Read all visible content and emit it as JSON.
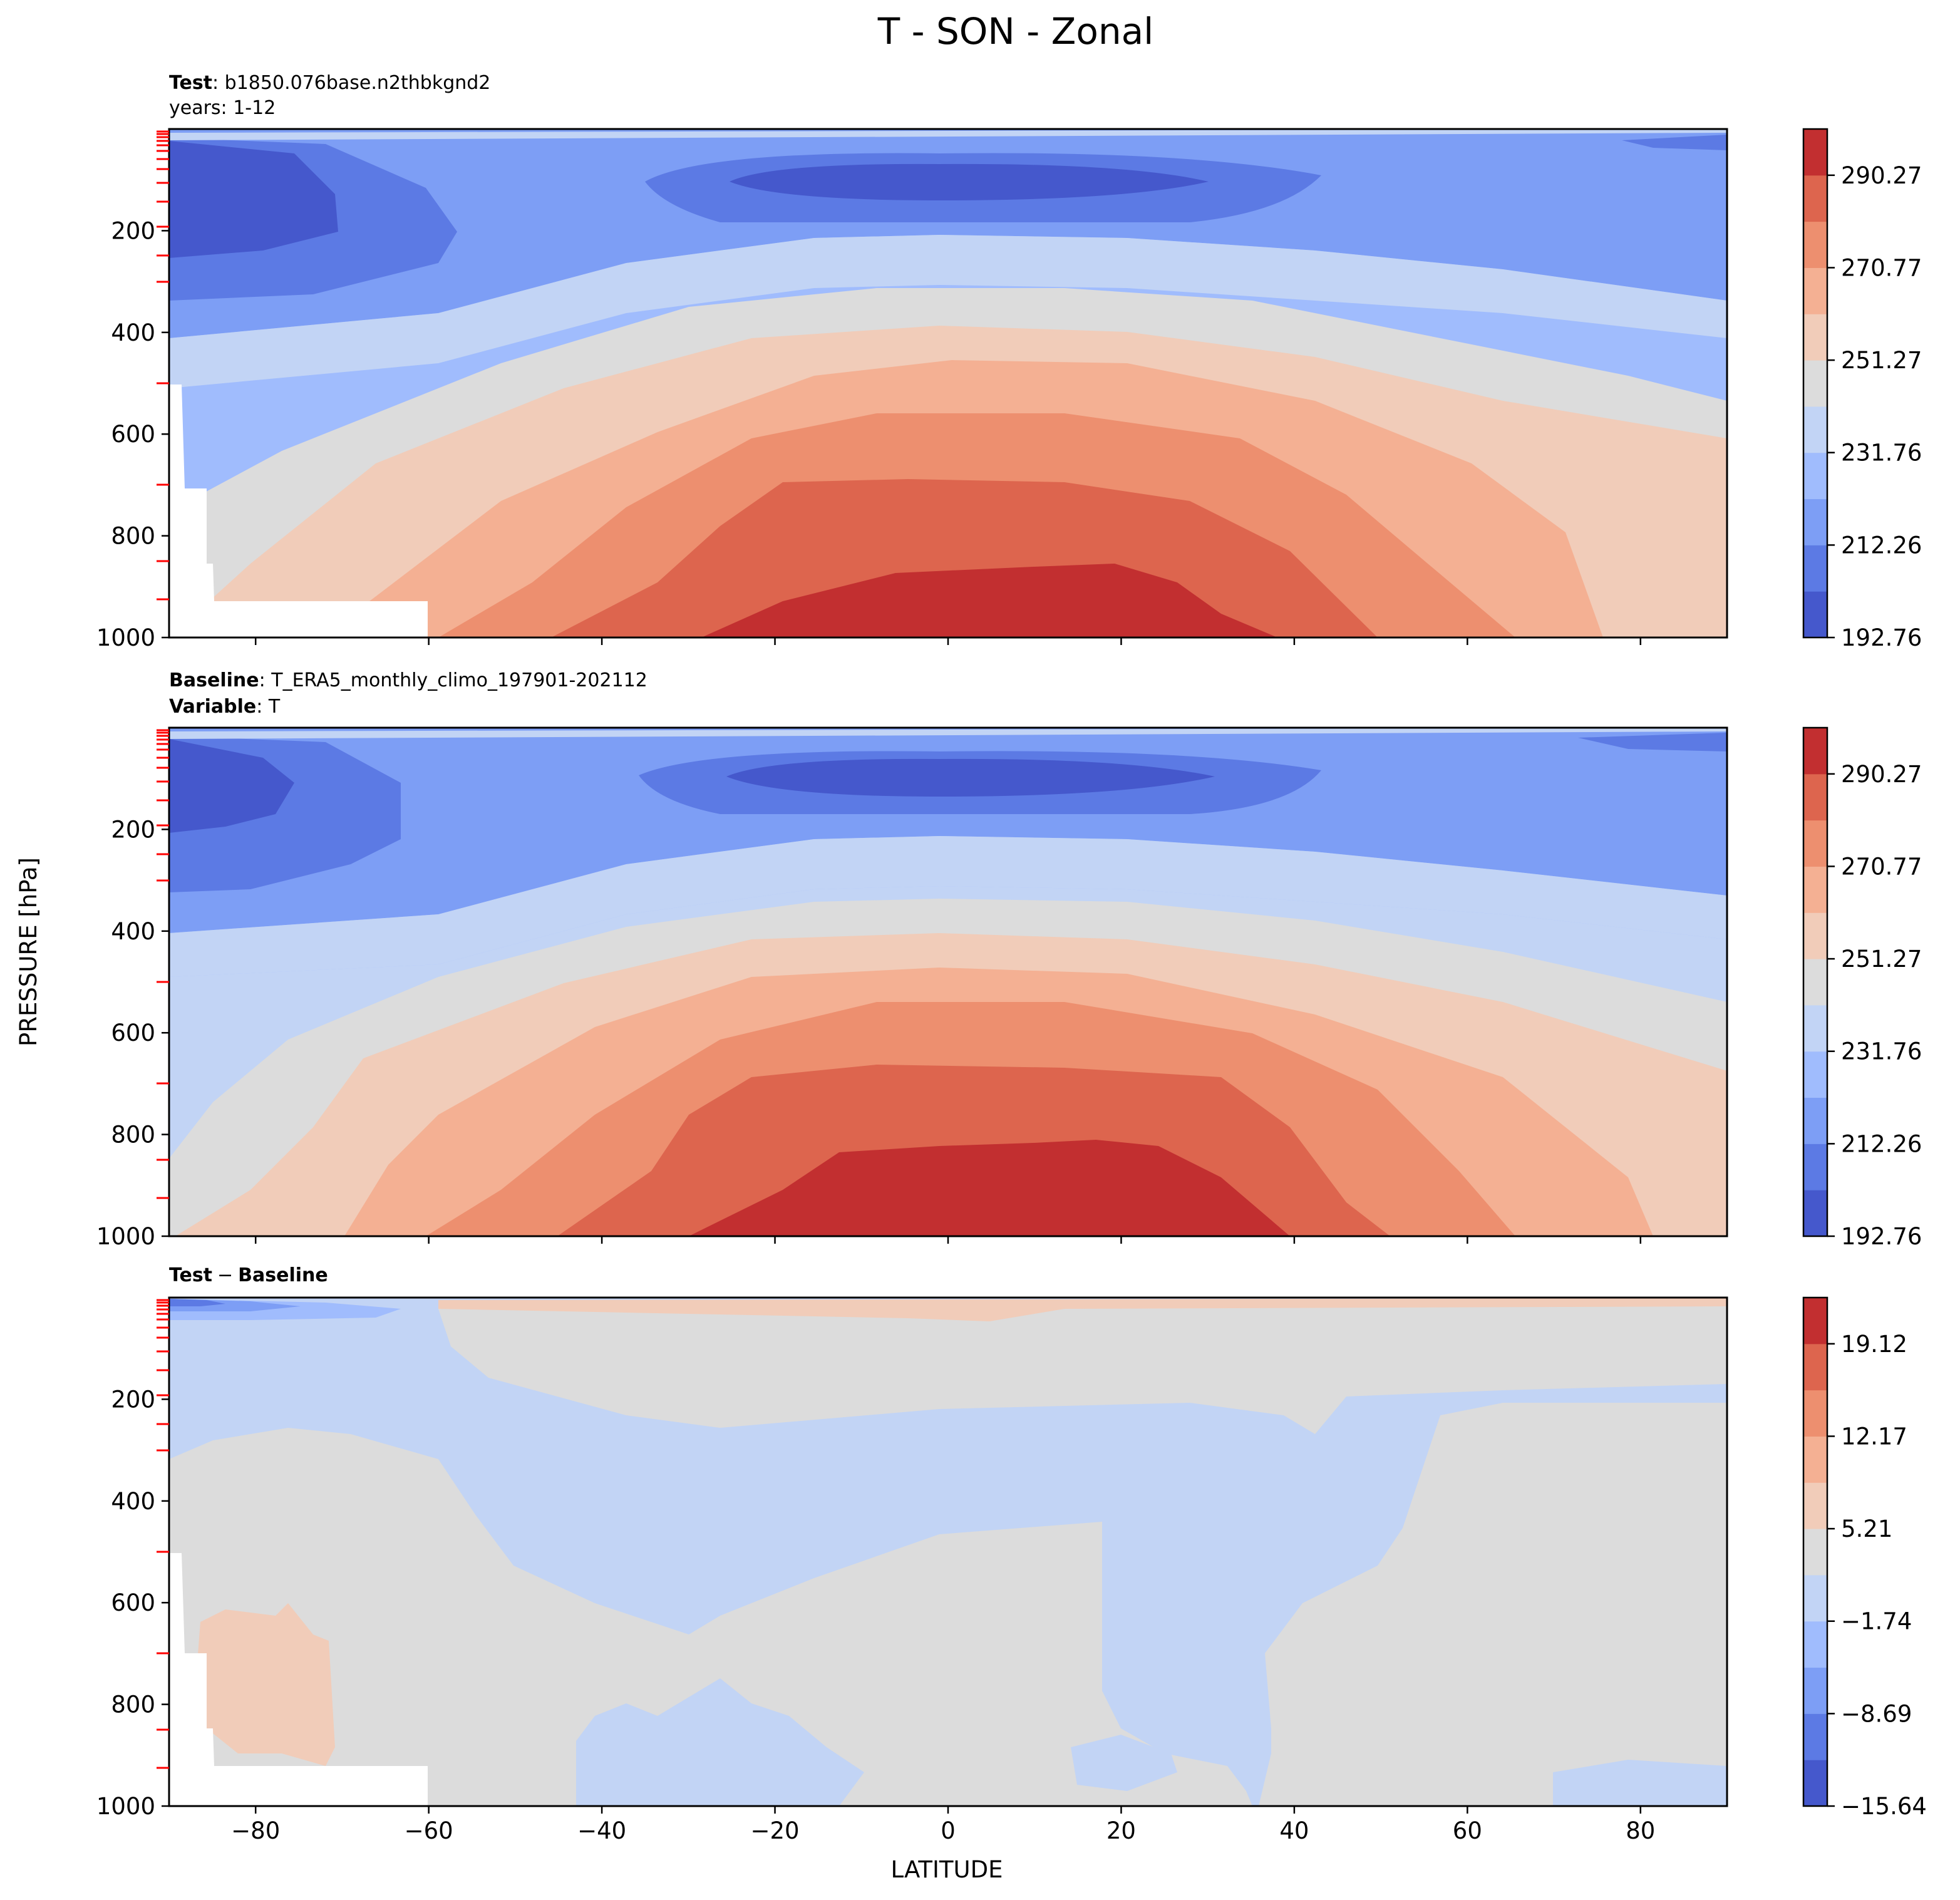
{
  "figure": {
    "title": "T - SON - Zonal",
    "shared_ylabel": "PRESSURE [hPa]",
    "shared_xlabel": "LATITUDE"
  },
  "colors": {
    "scale": [
      "#4558cc",
      "#5c7ae4",
      "#7d9ef5",
      "#a0bcfd",
      "#c2d4f5",
      "#dcdcdc",
      "#f1ccb9",
      "#f4b093",
      "#ed8f6f",
      "#dd654e",
      "#c22f30"
    ],
    "axes_edge": "#000000",
    "level_ticks": "#ff0000",
    "missing": "#ffffff"
  },
  "panels": [
    {
      "id": "test",
      "header_line1_bold": "Test",
      "header_line1_text": ": b1850.076base.n2thbkgnd2",
      "header_line2": "years: 1-12",
      "colorbar_ticks": [
        "290.27",
        "270.77",
        "251.27",
        "231.76",
        "212.26",
        "192.76"
      ]
    },
    {
      "id": "baseline",
      "header_line1_bold": "Baseline",
      "header_line1_text": ": T_ERA5_monthly_climo_197901-202112",
      "header_line2_bold": "Variable",
      "header_line2_text": ": T",
      "colorbar_ticks": [
        "290.27",
        "270.77",
        "251.27",
        "231.76",
        "212.26",
        "192.76"
      ]
    },
    {
      "id": "difference",
      "header_test": "Test",
      "header_minus": "−",
      "header_base": "Baseline",
      "colorbar_ticks": [
        "19.12",
        "12.17",
        "5.21",
        "−1.74",
        "−8.69",
        "−15.64"
      ]
    }
  ],
  "chart_data": [
    {
      "type": "heatmap",
      "panel": "test",
      "xlim": [
        -90,
        90
      ],
      "ylim": [
        1000,
        0
      ],
      "x_ticks": [
        -80,
        -60,
        -40,
        -20,
        0,
        20,
        40,
        60,
        80
      ],
      "y_ticks": [
        200,
        400,
        600,
        800,
        1000
      ],
      "colorbar": {
        "levels": [
          192.76,
          202.51,
          212.26,
          222.01,
          231.76,
          241.51,
          251.27,
          261.02,
          270.77,
          280.52,
          290.27,
          300.02
        ],
        "tick_labels": [
          "290.27",
          "270.77",
          "251.27",
          "231.76",
          "212.26",
          "192.76"
        ]
      },
      "contour_isotherms": [
        {
          "level": 212.26,
          "latitude": [
            -60,
            -30,
            0,
            30,
            60,
            90
          ],
          "pressure": [
            330,
            270,
            170,
            170,
            250,
            350
          ]
        },
        {
          "level": 231.76,
          "latitude": [
            -90,
            -60,
            -30,
            0,
            30,
            60,
            90
          ],
          "pressure": [
            420,
            390,
            300,
            230,
            240,
            300,
            330
          ]
        },
        {
          "level": 241.51,
          "latitude": [
            -85,
            -70,
            -50,
            -30,
            0,
            30,
            60,
            90
          ],
          "pressure": [
            710,
            600,
            500,
            360,
            320,
            350,
            420,
            490
          ]
        },
        {
          "level": 251.27,
          "latitude": [
            -80,
            -60,
            -40,
            -20,
            0,
            30,
            60,
            90
          ],
          "pressure": [
            850,
            680,
            560,
            430,
            385,
            430,
            520,
            690
          ]
        },
        {
          "level": 261.02,
          "latitude": [
            -70,
            -50,
            -30,
            -15,
            0,
            30,
            60,
            80
          ],
          "pressure": [
            960,
            800,
            640,
            520,
            475,
            520,
            680,
            1000
          ]
        },
        {
          "level": 270.77,
          "latitude": [
            -50,
            -30,
            -15,
            0,
            30,
            50,
            68
          ],
          "pressure": [
            960,
            820,
            660,
            580,
            640,
            850,
            1000
          ]
        },
        {
          "level": 280.52,
          "latitude": [
            -35,
            -20,
            -10,
            0,
            30,
            45,
            58
          ],
          "pressure": [
            1000,
            840,
            730,
            700,
            730,
            850,
            1000
          ]
        },
        {
          "level": 290.27,
          "latitude": [
            -20,
            -10,
            0,
            12,
            25,
            40
          ],
          "pressure": [
            990,
            890,
            870,
            850,
            900,
            1000
          ]
        }
      ]
    },
    {
      "type": "heatmap",
      "panel": "baseline",
      "xlim": [
        -90,
        90
      ],
      "ylim": [
        1000,
        0
      ],
      "x_ticks": [
        -80,
        -60,
        -40,
        -20,
        0,
        20,
        40,
        60,
        80
      ],
      "y_ticks": [
        200,
        400,
        600,
        800,
        1000
      ],
      "colorbar": {
        "levels": [
          192.76,
          202.51,
          212.26,
          222.01,
          231.76,
          241.51,
          251.27,
          261.02,
          270.77,
          280.52,
          290.27,
          300.02
        ],
        "tick_labels": [
          "290.27",
          "270.77",
          "251.27",
          "231.76",
          "212.26",
          "192.76"
        ]
      },
      "contour_isotherms": [
        {
          "level": 212.26,
          "latitude": [
            -60,
            -30,
            0,
            30,
            60,
            90
          ],
          "pressure": [
            300,
            260,
            170,
            170,
            250,
            350
          ]
        },
        {
          "level": 231.76,
          "latitude": [
            -90,
            -60,
            -30,
            0,
            30,
            60,
            90
          ],
          "pressure": [
            400,
            380,
            300,
            230,
            240,
            300,
            330
          ]
        },
        {
          "level": 241.51,
          "latitude": [
            -90,
            -70,
            -50,
            -30,
            0,
            30,
            60,
            90
          ],
          "pressure": [
            820,
            600,
            500,
            360,
            320,
            350,
            420,
            540
          ]
        },
        {
          "level": 251.27,
          "latitude": [
            -85,
            -65,
            -40,
            -20,
            0,
            30,
            60,
            90
          ],
          "pressure": [
            1000,
            780,
            560,
            430,
            370,
            430,
            520,
            680
          ]
        },
        {
          "level": 261.02,
          "latitude": [
            -70,
            -50,
            -30,
            -15,
            0,
            30,
            60,
            82
          ],
          "pressure": [
            1000,
            800,
            640,
            520,
            470,
            520,
            680,
            1000
          ]
        },
        {
          "level": 270.77,
          "latitude": [
            -60,
            -40,
            -20,
            0,
            30,
            50,
            66
          ],
          "pressure": [
            1000,
            820,
            660,
            570,
            640,
            850,
            1000
          ]
        },
        {
          "level": 280.52,
          "latitude": [
            -45,
            -30,
            -15,
            0,
            30,
            45,
            52
          ],
          "pressure": [
            1000,
            850,
            700,
            670,
            700,
            850,
            1000
          ]
        },
        {
          "level": 290.27,
          "latitude": [
            -30,
            -15,
            0,
            15,
            30,
            40
          ],
          "pressure": [
            990,
            850,
            830,
            820,
            880,
            1000
          ]
        }
      ]
    },
    {
      "type": "heatmap",
      "panel": "difference",
      "xlim": [
        -90,
        90
      ],
      "ylim": [
        1000,
        0
      ],
      "x_ticks": [
        -80,
        -60,
        -40,
        -20,
        0,
        20,
        40,
        60,
        80
      ],
      "y_ticks": [
        200,
        400,
        600,
        800,
        1000
      ],
      "xlabel": "LATITUDE",
      "colorbar": {
        "levels": [
          -19.12,
          -15.64,
          -12.17,
          -8.69,
          -5.21,
          -1.74,
          1.74,
          5.21,
          8.69,
          12.17,
          15.64,
          19.12
        ],
        "tick_labels": [
          "19.12",
          "12.17",
          "5.21",
          "−1.74",
          "−8.69",
          "−15.64"
        ]
      },
      "regions": [
        {
          "value_bin": [
            -5.21,
            -1.74
          ],
          "description_latitudes": [
            -90,
            90
          ],
          "pressures": [
            0,
            1000
          ]
        },
        {
          "value_bin": [
            -1.74,
            1.74
          ],
          "latitudes": [
            -55,
            40
          ],
          "pressures": [
            100,
            240
          ]
        },
        {
          "value_bin": [
            1.74,
            5.21
          ],
          "latitudes": [
            -55,
            90
          ],
          "pressures": [
            0,
            40
          ]
        },
        {
          "value_bin": [
            1.74,
            5.21
          ],
          "latitudes": [
            -87,
            -70
          ],
          "pressures": [
            620,
            900
          ]
        },
        {
          "value_bin": [
            -8.69,
            -5.21
          ],
          "latitudes": [
            -90,
            -63
          ],
          "pressures": [
            0,
            40
          ]
        }
      ]
    }
  ]
}
